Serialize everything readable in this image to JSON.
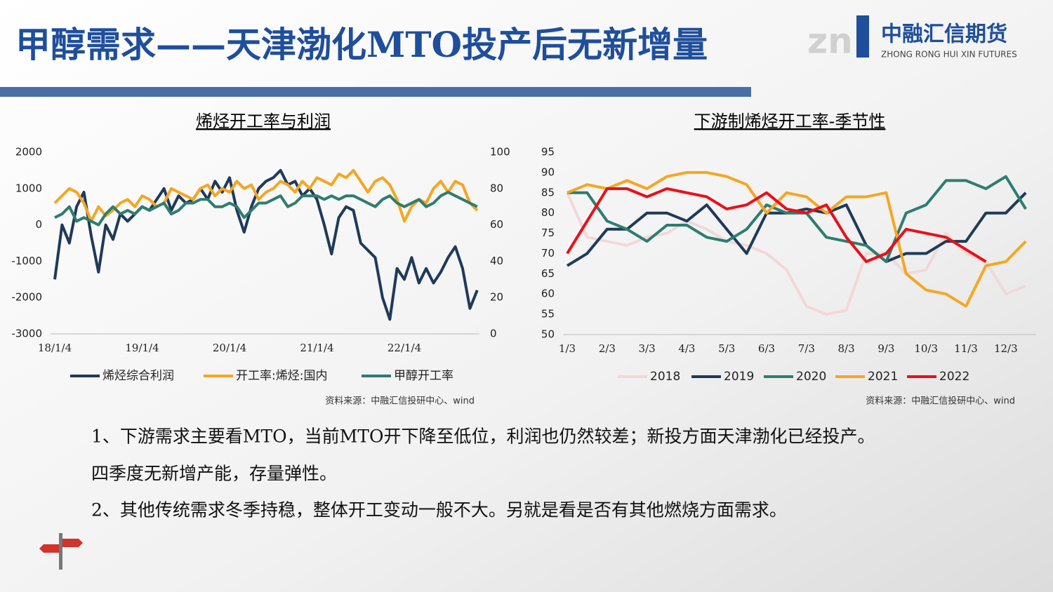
{
  "slide": {
    "title": "甲醇需求——天津渤化MTO投产后无新增量"
  },
  "logo": {
    "name": "中融汇信期货",
    "en": "ZHONG RONG HUI XIN FUTURES"
  },
  "notes": [
    "1、下游需求主要看MTO，当前MTO开下降至低位，利润也仍然较差；新投方面天津渤化已经投产。",
    "四季度无新增产能，存量弹性。",
    "2、其他传统需求冬季持稳，整体开工变动一般不大。另就是看是否有其他燃烧方面需求。"
  ],
  "chart_data": [
    {
      "type": "line",
      "title": "烯烃开工率与利润",
      "source": "资料来源：中融汇信投研中心、wind",
      "categories": [
        "18/1/4",
        null,
        null,
        null,
        null,
        null,
        null,
        null,
        null,
        null,
        null,
        null,
        "19/1/4",
        null,
        null,
        null,
        null,
        null,
        null,
        null,
        null,
        null,
        null,
        null,
        "20/1/4",
        null,
        null,
        null,
        null,
        null,
        null,
        null,
        null,
        null,
        null,
        null,
        "21/1/4",
        null,
        null,
        null,
        null,
        null,
        null,
        null,
        null,
        null,
        null,
        null,
        "22/1/4",
        null,
        null,
        null,
        null,
        null,
        null,
        null,
        null,
        null,
        null
      ],
      "ylim": [
        -3000,
        2000
      ],
      "yticks": [
        -3000,
        -2000,
        -1000,
        0,
        1000,
        2000
      ],
      "y2lim": [
        0,
        100
      ],
      "y2ticks": [
        0,
        20,
        40,
        60,
        80,
        100
      ],
      "series": [
        {
          "name": "烯烃综合利润",
          "color": "#1f3a5a",
          "values": [
            -1500,
            0,
            -500,
            500,
            900,
            -300,
            -1300,
            0,
            -400,
            300,
            100,
            300,
            500,
            400,
            700,
            1000,
            400,
            800,
            600,
            700,
            1000,
            700,
            1200,
            900,
            1300,
            400,
            -200,
            500,
            1000,
            1200,
            1300,
            1500,
            1100,
            1200,
            800,
            1000,
            700,
            0,
            -800,
            200,
            500,
            400,
            -500,
            -700,
            -900,
            -2000,
            -2600,
            -1200,
            -1500,
            -900,
            -1600,
            -1200,
            -1600,
            -1300,
            -900,
            -600,
            -1200,
            -2300,
            -1800
          ]
        },
        {
          "name": "开工率:烯烃:国内",
          "color": "#f5a623",
          "axis": "y2",
          "values": [
            72,
            76,
            80,
            78,
            72,
            62,
            70,
            65,
            68,
            72,
            74,
            70,
            76,
            74,
            70,
            72,
            80,
            78,
            76,
            74,
            80,
            82,
            76,
            80,
            78,
            84,
            80,
            82,
            74,
            78,
            80,
            84,
            82,
            78,
            84,
            80,
            86,
            84,
            82,
            88,
            86,
            90,
            84,
            78,
            84,
            86,
            82,
            74,
            62,
            70,
            74,
            72,
            80,
            84,
            78,
            84,
            82,
            72,
            68
          ]
        },
        {
          "name": "甲醇开工率",
          "color": "#2e7d6e",
          "axis": "y2",
          "values": [
            64,
            66,
            70,
            62,
            64,
            62,
            60,
            66,
            70,
            66,
            68,
            66,
            70,
            68,
            70,
            72,
            66,
            68,
            72,
            72,
            74,
            74,
            70,
            70,
            72,
            70,
            64,
            68,
            72,
            72,
            74,
            76,
            70,
            72,
            76,
            76,
            76,
            74,
            76,
            74,
            76,
            76,
            74,
            72,
            70,
            74,
            76,
            72,
            70,
            72,
            74,
            70,
            72,
            76,
            78,
            76,
            74,
            72,
            70
          ]
        }
      ]
    },
    {
      "type": "line",
      "title": "下游制烯烃开工率-季节性",
      "source": "资料来源：中融汇信投研中心、wind",
      "categories": [
        "1/3",
        null,
        "2/3",
        null,
        "3/3",
        null,
        "4/3",
        null,
        "5/3",
        null,
        "6/3",
        null,
        "7/3",
        null,
        "8/3",
        null,
        "9/3",
        null,
        "10/3",
        null,
        "11/3",
        null,
        "12/3",
        null
      ],
      "ylim": [
        50,
        95
      ],
      "yticks": [
        50,
        55,
        60,
        65,
        70,
        75,
        80,
        85,
        90,
        95
      ],
      "series": [
        {
          "name": "2018",
          "color": "#f2d8d8",
          "values": [
            85,
            74,
            73,
            72,
            74,
            75,
            78,
            76,
            73,
            72,
            70,
            66,
            57,
            55,
            56,
            70,
            70,
            65,
            66,
            75,
            70,
            68,
            60,
            62
          ]
        },
        {
          "name": "2019",
          "color": "#1f3a5a",
          "values": [
            67,
            70,
            76,
            76,
            80,
            80,
            78,
            82,
            76,
            70,
            80,
            80,
            81,
            80,
            82,
            72,
            68,
            70,
            70,
            73,
            73,
            80,
            80,
            85
          ]
        },
        {
          "name": "2020",
          "color": "#2e7d6e",
          "values": [
            85,
            85,
            78,
            76,
            73,
            77,
            77,
            74,
            73,
            76,
            82,
            80,
            80,
            74,
            73,
            72,
            68,
            80,
            82,
            88,
            88,
            86,
            89,
            81
          ]
        },
        {
          "name": "2021",
          "color": "#f5a623",
          "values": [
            85,
            87,
            86,
            88,
            86,
            89,
            90,
            90,
            89,
            87,
            80,
            85,
            84,
            80,
            84,
            84,
            85,
            65,
            61,
            60,
            57,
            67,
            68,
            73
          ]
        },
        {
          "name": "2022",
          "color": "#e8101a",
          "values": [
            70,
            78,
            86,
            86,
            84,
            86,
            85,
            84,
            81,
            82,
            85,
            81,
            80,
            82,
            74,
            68,
            70,
            76,
            75,
            74,
            71,
            68,
            null,
            null
          ]
        }
      ]
    }
  ]
}
